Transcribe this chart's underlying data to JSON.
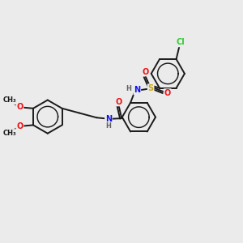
{
  "background_color": "#ebebeb",
  "bond_color": "#1a1a1a",
  "bond_lw": 1.4,
  "figsize": [
    3.0,
    3.0
  ],
  "dpi": 100,
  "colors": {
    "C": "#1a1a1a",
    "N": "#1010ee",
    "O": "#ee1010",
    "S": "#ccaa00",
    "Cl": "#33cc33",
    "H": "#606060"
  },
  "font_size": 7.0,
  "inner_circle_ratio": 0.62
}
